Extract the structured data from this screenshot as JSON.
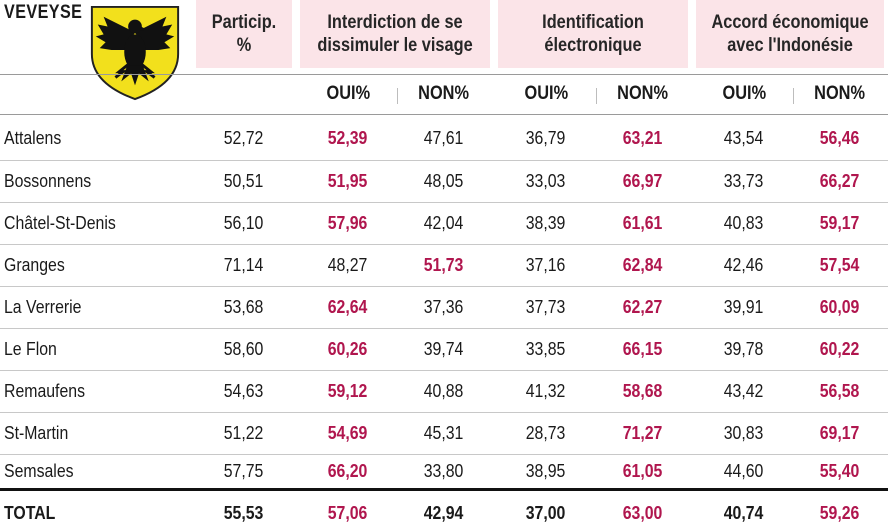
{
  "region": "VEVEYSE",
  "crest_colors": {
    "field": "#f2e01c",
    "eagle": "#111111"
  },
  "headers": {
    "particip": "Particip. %",
    "visage": "Interdiction de se dissimuler le visage",
    "ident": "Identification électronique",
    "accord": "Accord économique avec l'Indonésie"
  },
  "sub": {
    "oui": "OUI%",
    "non": "NON%"
  },
  "rows": [
    {
      "name": "Attalens",
      "part": "52,72",
      "v1": "52,39",
      "v2": "47,61",
      "e1": "36,79",
      "e2": "63,21",
      "a1": "43,54",
      "a2": "56,46"
    },
    {
      "name": "Bossonnens",
      "part": "50,51",
      "v1": "51,95",
      "v2": "48,05",
      "e1": "33,03",
      "e2": "66,97",
      "a1": "33,73",
      "a2": "66,27"
    },
    {
      "name": "Châtel-St-Denis",
      "part": "56,10",
      "v1": "57,96",
      "v2": "42,04",
      "e1": "38,39",
      "e2": "61,61",
      "a1": "40,83",
      "a2": "59,17"
    },
    {
      "name": "Granges",
      "part": "71,14",
      "v1": "48,27",
      "v2": "51,73",
      "e1": "37,16",
      "e2": "62,84",
      "a1": "42,46",
      "a2": "57,54"
    },
    {
      "name": "La Verrerie",
      "part": "53,68",
      "v1": "62,64",
      "v2": "37,36",
      "e1": "37,73",
      "e2": "62,27",
      "a1": "39,91",
      "a2": "60,09"
    },
    {
      "name": "Le Flon",
      "part": "58,60",
      "v1": "60,26",
      "v2": "39,74",
      "e1": "33,85",
      "e2": "66,15",
      "a1": "39,78",
      "a2": "60,22"
    },
    {
      "name": "Remaufens",
      "part": "54,63",
      "v1": "59,12",
      "v2": "40,88",
      "e1": "41,32",
      "e2": "58,68",
      "a1": "43,42",
      "a2": "56,58"
    },
    {
      "name": "St-Martin",
      "part": "51,22",
      "v1": "54,69",
      "v2": "45,31",
      "e1": "28,73",
      "e2": "71,27",
      "a1": "30,83",
      "a2": "69,17"
    },
    {
      "name": "Semsales",
      "part": "57,75",
      "v1": "66,20",
      "v2": "33,80",
      "e1": "38,95",
      "e2": "61,05",
      "a1": "44,60",
      "a2": "55,40"
    }
  ],
  "total": {
    "name": "TOTAL",
    "part": "55,53",
    "v1": "57,06",
    "v2": "42,94",
    "e1": "37,00",
    "e2": "63,00",
    "a1": "40,74",
    "a2": "59,26"
  }
}
